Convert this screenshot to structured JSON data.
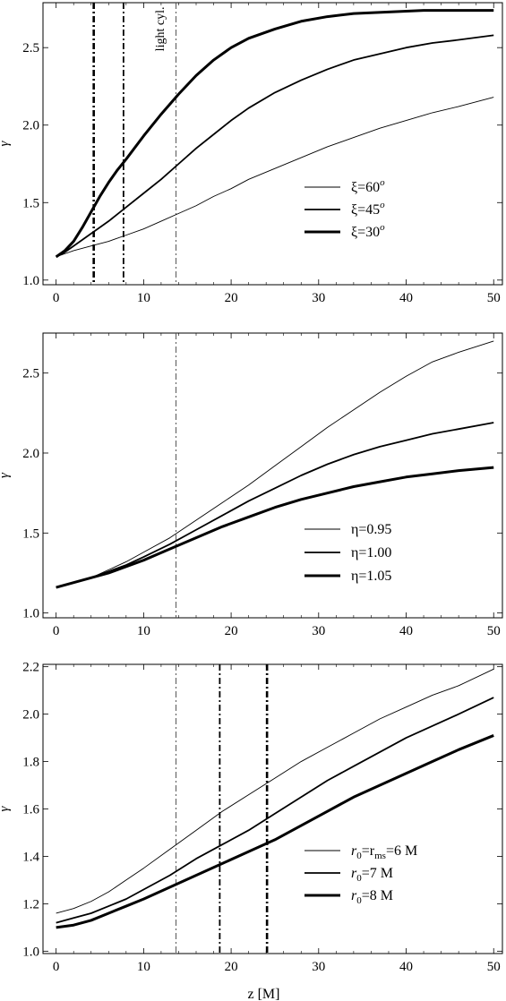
{
  "chart_data": [
    {
      "type": "line",
      "xlabel": "",
      "ylabel": "γ",
      "xlim": [
        -1.5,
        51
      ],
      "ylim": [
        0.97,
        2.79
      ],
      "xticks": [
        0,
        10,
        20,
        30,
        40,
        50
      ],
      "xtick_labels": [
        "0",
        "10",
        "20",
        "30",
        "40",
        "50"
      ],
      "yticks": [
        1.0,
        1.5,
        2.0,
        2.5
      ],
      "ytick_labels": [
        "1.0",
        "1.5",
        "2.0",
        "2.5"
      ],
      "legend_position": "lower-right",
      "series": [
        {
          "name": "ξ=60",
          "name_base": "ξ=60",
          "name_sup": "o",
          "width": 0.9,
          "x": [
            0,
            1,
            2,
            4,
            6,
            8,
            10,
            12,
            14,
            16,
            18,
            20,
            22,
            25,
            28,
            31,
            34,
            37,
            40,
            43,
            46,
            50
          ],
          "y": [
            1.15,
            1.17,
            1.19,
            1.22,
            1.25,
            1.29,
            1.33,
            1.38,
            1.43,
            1.48,
            1.54,
            1.59,
            1.65,
            1.72,
            1.79,
            1.86,
            1.92,
            1.98,
            2.03,
            2.08,
            2.12,
            2.18
          ]
        },
        {
          "name": "ξ=45",
          "name_base": "ξ=45",
          "name_sup": "o",
          "width": 1.8,
          "x": [
            0,
            1,
            2,
            4,
            6,
            8,
            10,
            12,
            14,
            16,
            18,
            20,
            22,
            25,
            28,
            31,
            34,
            37,
            40,
            43,
            46,
            50
          ],
          "y": [
            1.15,
            1.18,
            1.22,
            1.3,
            1.38,
            1.47,
            1.56,
            1.65,
            1.75,
            1.85,
            1.94,
            2.03,
            2.11,
            2.21,
            2.29,
            2.36,
            2.42,
            2.46,
            2.5,
            2.53,
            2.55,
            2.58
          ]
        },
        {
          "name": "ξ=30",
          "name_base": "ξ=30",
          "name_sup": "o",
          "width": 3.0,
          "x": [
            0,
            1,
            2,
            3,
            4,
            5,
            6,
            7,
            8,
            10,
            12,
            14,
            16,
            18,
            20,
            22,
            25,
            28,
            31,
            34,
            38,
            42,
            46,
            50
          ],
          "y": [
            1.15,
            1.19,
            1.25,
            1.34,
            1.44,
            1.54,
            1.63,
            1.71,
            1.78,
            1.93,
            2.07,
            2.2,
            2.32,
            2.42,
            2.5,
            2.56,
            2.62,
            2.67,
            2.7,
            2.72,
            2.73,
            2.74,
            2.74,
            2.74
          ]
        }
      ],
      "vlines": [
        {
          "x": 4.3,
          "style": "dashdot",
          "width": 2.6,
          "color": "#000000"
        },
        {
          "x": 7.7,
          "style": "dashdot",
          "width": 1.8,
          "color": "#000000"
        },
        {
          "x": 13.7,
          "style": "dashdot",
          "width": 1.0,
          "color": "#555555"
        }
      ],
      "annotation": {
        "text": "light cyl.",
        "x": 12.3,
        "y": 2.62
      }
    },
    {
      "type": "line",
      "xlabel": "",
      "ylabel": "γ",
      "xlim": [
        -1.5,
        51
      ],
      "ylim": [
        0.97,
        2.75
      ],
      "xticks": [
        0,
        10,
        20,
        30,
        40,
        50
      ],
      "xtick_labels": [
        "0",
        "10",
        "20",
        "30",
        "40",
        "50"
      ],
      "yticks": [
        1.0,
        1.5,
        2.0,
        2.5
      ],
      "ytick_labels": [
        "1.0",
        "1.5",
        "2.0",
        "2.5"
      ],
      "legend_position": "lower-right",
      "series": [
        {
          "name": "η=0.95",
          "name_base": "η=0.95",
          "name_sup": "",
          "width": 0.9,
          "x": [
            0,
            2,
            4,
            6,
            8,
            10,
            13,
            16,
            19,
            22,
            25,
            28,
            31,
            34,
            37,
            40,
            43,
            46,
            50
          ],
          "y": [
            1.16,
            1.19,
            1.22,
            1.27,
            1.32,
            1.38,
            1.47,
            1.58,
            1.69,
            1.8,
            1.92,
            2.04,
            2.16,
            2.27,
            2.38,
            2.48,
            2.57,
            2.63,
            2.7
          ]
        },
        {
          "name": "η=1.00",
          "name_base": "η=1.00",
          "name_sup": "",
          "width": 1.8,
          "x": [
            0,
            2,
            4,
            6,
            8,
            10,
            13,
            16,
            19,
            22,
            25,
            28,
            31,
            34,
            37,
            40,
            43,
            46,
            50
          ],
          "y": [
            1.16,
            1.19,
            1.22,
            1.26,
            1.3,
            1.35,
            1.43,
            1.52,
            1.61,
            1.7,
            1.78,
            1.86,
            1.93,
            1.99,
            2.04,
            2.08,
            2.12,
            2.15,
            2.19
          ]
        },
        {
          "name": "η=1.05",
          "name_base": "η=1.05",
          "name_sup": "",
          "width": 3.0,
          "x": [
            0,
            2,
            4,
            6,
            8,
            10,
            13,
            16,
            19,
            22,
            25,
            28,
            31,
            34,
            37,
            40,
            43,
            46,
            50
          ],
          "y": [
            1.16,
            1.19,
            1.22,
            1.25,
            1.29,
            1.33,
            1.4,
            1.47,
            1.54,
            1.6,
            1.66,
            1.71,
            1.75,
            1.79,
            1.82,
            1.85,
            1.87,
            1.89,
            1.91
          ]
        }
      ],
      "vlines": [
        {
          "x": 13.7,
          "style": "dashdot",
          "width": 1.0,
          "color": "#555555"
        }
      ]
    },
    {
      "type": "line",
      "xlabel": "z [M]",
      "ylabel": "γ",
      "xlim": [
        -1.5,
        51
      ],
      "ylim": [
        0.99,
        2.21
      ],
      "xticks": [
        0,
        10,
        20,
        30,
        40,
        50
      ],
      "xtick_labels": [
        "0",
        "10",
        "20",
        "30",
        "40",
        "50"
      ],
      "yticks": [
        1.0,
        1.2,
        1.4,
        1.6,
        1.8,
        2.0,
        2.2
      ],
      "ytick_labels": [
        "1.0",
        "1.2",
        "1.4",
        "1.6",
        "1.8",
        "2.0",
        "2.2"
      ],
      "legend_position": "lower-right",
      "series": [
        {
          "name": "r0=rms=6 M",
          "name_base": "r",
          "name_sub": "0",
          "name_rest": "=r",
          "name_sub2": "ms",
          "name_tail": "=6 M",
          "width": 0.9,
          "x": [
            0,
            2,
            4,
            6,
            8,
            10,
            13,
            16,
            19,
            22,
            25,
            28,
            31,
            34,
            37,
            40,
            43,
            46,
            50
          ],
          "y": [
            1.16,
            1.18,
            1.21,
            1.25,
            1.3,
            1.35,
            1.43,
            1.51,
            1.59,
            1.66,
            1.73,
            1.8,
            1.86,
            1.92,
            1.98,
            2.03,
            2.08,
            2.12,
            2.19
          ]
        },
        {
          "name": "r0=7 M",
          "name_base": "r",
          "name_sub": "0",
          "name_rest": "=7 M",
          "name_sub2": "",
          "name_tail": "",
          "width": 1.8,
          "x": [
            0,
            2,
            4,
            6,
            8,
            10,
            13,
            16,
            19,
            22,
            25,
            28,
            31,
            34,
            37,
            40,
            43,
            46,
            50
          ],
          "y": [
            1.12,
            1.14,
            1.16,
            1.19,
            1.22,
            1.26,
            1.32,
            1.39,
            1.45,
            1.51,
            1.58,
            1.65,
            1.72,
            1.78,
            1.84,
            1.9,
            1.95,
            2.0,
            2.07
          ]
        },
        {
          "name": "r0=8 M",
          "name_base": "r",
          "name_sub": "0",
          "name_rest": "=8 M",
          "name_sub2": "",
          "name_tail": "",
          "width": 3.0,
          "x": [
            0,
            2,
            4,
            6,
            8,
            10,
            13,
            16,
            19,
            22,
            25,
            28,
            31,
            34,
            37,
            40,
            43,
            46,
            50
          ],
          "y": [
            1.1,
            1.11,
            1.13,
            1.16,
            1.19,
            1.22,
            1.27,
            1.32,
            1.37,
            1.42,
            1.47,
            1.53,
            1.59,
            1.65,
            1.7,
            1.75,
            1.8,
            1.85,
            1.91
          ]
        }
      ],
      "vlines": [
        {
          "x": 13.7,
          "style": "dashdot",
          "width": 1.0,
          "color": "#555555"
        },
        {
          "x": 18.7,
          "style": "dashdot",
          "width": 1.8,
          "color": "#000000"
        },
        {
          "x": 24.1,
          "style": "dashdot",
          "width": 2.6,
          "color": "#000000"
        }
      ]
    }
  ]
}
